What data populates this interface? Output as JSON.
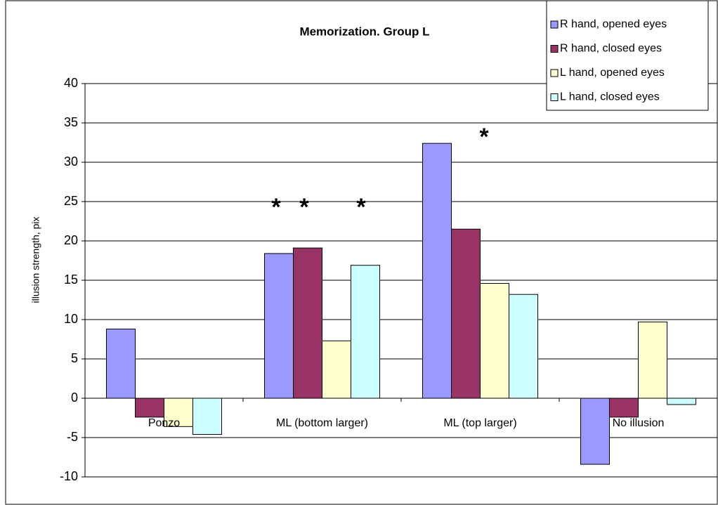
{
  "chart_data": {
    "type": "bar",
    "title": "Memorization. Group L",
    "y_label": "illusion strength, pix",
    "categories": [
      "Ponzo",
      "ML (bottom larger)",
      "ML (top larger)",
      "No illusion"
    ],
    "series": [
      {
        "name": "R hand, opened eyes",
        "color": "#9999ff",
        "values": [
          8.8,
          18.4,
          32.4,
          -8.4
        ]
      },
      {
        "name": "R hand, closed eyes",
        "color": "#993366",
        "values": [
          -2.4,
          19.1,
          21.5,
          -2.4
        ]
      },
      {
        "name": "L hand, opened eyes",
        "color": "#ffffcc",
        "values": [
          -3.6,
          7.3,
          14.6,
          9.7
        ]
      },
      {
        "name": "L hand, closed eyes",
        "color": "#ccffff",
        "values": [
          -4.6,
          16.9,
          13.2,
          -0.8
        ]
      }
    ],
    "ylim": [
      -10,
      40
    ],
    "yticks": [
      -10,
      -5,
      0,
      5,
      10,
      15,
      20,
      25,
      30,
      35,
      40
    ],
    "grid": true,
    "annotations": [
      "*",
      "*",
      "*",
      "*"
    ]
  }
}
